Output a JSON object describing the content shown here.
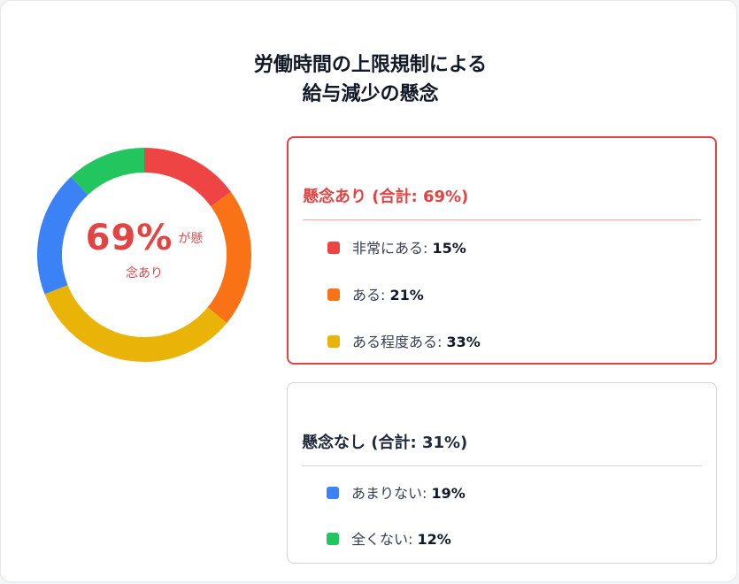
{
  "title_line1": "労働時間の上限規制による",
  "title_line2": "給与減少の懸念",
  "center": {
    "percent": "69%",
    "label_a": "が懸",
    "label_b": "念あり"
  },
  "groups": [
    {
      "heading": "懸念あり (合計: 69%)",
      "color": "#e24444",
      "items": [
        {
          "name": "非常にある: ",
          "value": "15%",
          "color": "#ef4444"
        },
        {
          "name": "ある: ",
          "value": "21%",
          "color": "#f97316"
        },
        {
          "name": "ある程度ある: ",
          "value": "33%",
          "color": "#eab308"
        }
      ]
    },
    {
      "heading": "懸念なし (合計: 31%)",
      "color": "#1f2937",
      "items": [
        {
          "name": "あまりない: ",
          "value": "19%",
          "color": "#3b82f6"
        },
        {
          "name": "全くない: ",
          "value": "12%",
          "color": "#22c55e"
        }
      ]
    }
  ],
  "chart_data": {
    "type": "pie",
    "categories": [
      "非常にある",
      "ある",
      "ある程度ある",
      "あまりない",
      "全くない"
    ],
    "values": [
      15,
      21,
      33,
      19,
      12
    ],
    "colors": [
      "#ef4444",
      "#f97316",
      "#eab308",
      "#3b82f6",
      "#22c55e"
    ],
    "title": "労働時間の上限規制による給与減少の懸念"
  }
}
